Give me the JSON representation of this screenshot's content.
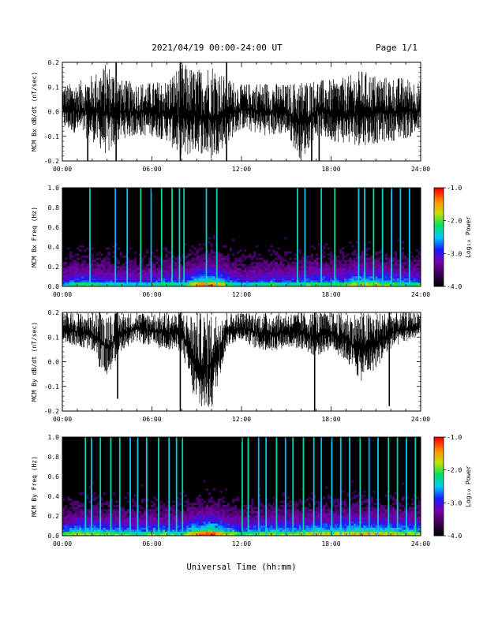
{
  "header": {
    "title": "2021/04/19  00:00-24:00 UT",
    "page": "Page 1/1"
  },
  "footer": {
    "xlabel": "Universal Time (hh:mm)"
  },
  "colors": {
    "background": "#000000",
    "trace": "#000000",
    "colormap": [
      "#000000",
      "#3a0058",
      "#7a00a8",
      "#1a1aff",
      "#00c8ff",
      "#00e060",
      "#c8e000",
      "#ff8c00",
      "#ff0000"
    ]
  },
  "chart_data": [
    {
      "type": "line",
      "panel": "mcm-bx-dbdt",
      "ylabel": "MCM Bx dB/dt (nT/sec)",
      "x_range_hours": [
        0,
        24
      ],
      "ylim": [
        -0.2,
        0.2
      ],
      "x_ticks": [
        "00:00",
        "06:00",
        "12:00",
        "18:00",
        "24:00"
      ],
      "y_ticks": [
        "-0.2",
        "-0.1",
        "0.0",
        "0.1",
        "0.2"
      ],
      "series": [
        {
          "x_hours": [
            0,
            1,
            2,
            3,
            4,
            5,
            6,
            7,
            8,
            9,
            10,
            11,
            12,
            13,
            14,
            15,
            16,
            17,
            18,
            19,
            20,
            21,
            22,
            23,
            24
          ],
          "envelope_max": [
            0.11,
            0.12,
            0.15,
            0.2,
            0.13,
            0.12,
            0.12,
            0.13,
            0.2,
            0.17,
            0.2,
            0.14,
            0.11,
            0.12,
            0.12,
            0.11,
            0.13,
            0.13,
            0.13,
            0.14,
            0.17,
            0.15,
            0.14,
            0.14,
            0.12
          ],
          "envelope_min": [
            -0.07,
            -0.09,
            -0.12,
            -0.18,
            -0.11,
            -0.1,
            -0.1,
            -0.12,
            -0.2,
            -0.16,
            -0.2,
            -0.13,
            -0.07,
            -0.09,
            -0.1,
            -0.09,
            -0.2,
            -0.1,
            -0.12,
            -0.13,
            -0.14,
            -0.13,
            -0.12,
            -0.11,
            -0.09
          ]
        }
      ],
      "spikes": [
        {
          "x_hours": 1.7,
          "y_min": -0.2,
          "y_max": 0.1
        },
        {
          "x_hours": 3.6,
          "y_min": -0.2,
          "y_max": 0.2
        },
        {
          "x_hours": 7.9,
          "y_min": -0.2,
          "y_max": 0.2
        },
        {
          "x_hours": 11.0,
          "y_min": -0.2,
          "y_max": 0.2
        },
        {
          "x_hours": 16.7,
          "y_min": -0.2,
          "y_max": 0.1
        },
        {
          "x_hours": 17.2,
          "y_min": -0.2,
          "y_max": 0.0
        }
      ]
    },
    {
      "type": "heatmap",
      "panel": "mcm-bx-spectrogram",
      "ylabel": "MCM Bx Freq (Hz)",
      "x_range_hours": [
        0,
        24
      ],
      "ylim": [
        0.0,
        1.0
      ],
      "x_ticks": [
        "00:00",
        "06:00",
        "12:00",
        "18:00",
        "24:00"
      ],
      "y_ticks": [
        "0.0",
        "0.2",
        "0.4",
        "0.6",
        "0.8",
        "1.0"
      ],
      "colorbar": {
        "label": "Log₁₀ Power",
        "range": [
          -4.0,
          -1.0
        ],
        "ticks": [
          "-1.0",
          "-2.0",
          "-3.0",
          "-4.0"
        ]
      },
      "activity_by_hour": [
        0.45,
        0.55,
        0.55,
        0.5,
        0.5,
        0.45,
        0.5,
        0.55,
        0.5,
        0.75,
        0.8,
        0.6,
        0.45,
        0.5,
        0.55,
        0.5,
        0.55,
        0.6,
        0.55,
        0.6,
        0.7,
        0.65,
        0.6,
        0.55
      ],
      "vertical_lines_hours": [
        1.8,
        3.5,
        4.3,
        5.2,
        5.9,
        6.6,
        7.3,
        7.8,
        8.1,
        9.6,
        10.3,
        15.7,
        16.2,
        17.3,
        18.2,
        19.8,
        20.2,
        20.8,
        21.4,
        22.0,
        22.6,
        23.2
      ]
    },
    {
      "type": "line",
      "panel": "mcm-by-dbdt",
      "ylabel": "MCM By dB/dt (nT/sec)",
      "x_range_hours": [
        0,
        24
      ],
      "ylim": [
        -0.2,
        0.2
      ],
      "x_ticks": [
        "00:00",
        "06:00",
        "12:00",
        "18:00",
        "24:00"
      ],
      "y_ticks": [
        "-0.2",
        "-0.1",
        "0.0",
        "0.1",
        "0.2"
      ],
      "series": [
        {
          "x_hours": [
            0,
            1,
            2,
            3,
            4,
            5,
            6,
            7,
            8,
            9,
            10,
            11,
            12,
            13,
            14,
            15,
            16,
            17,
            18,
            19,
            20,
            21,
            22,
            23,
            24
          ],
          "envelope_max": [
            0.2,
            0.2,
            0.2,
            0.2,
            0.2,
            0.2,
            0.2,
            0.2,
            0.2,
            0.2,
            0.2,
            0.2,
            0.2,
            0.2,
            0.2,
            0.2,
            0.2,
            0.2,
            0.2,
            0.2,
            0.2,
            0.2,
            0.2,
            0.2,
            0.2
          ],
          "envelope_min": [
            0.08,
            0.06,
            0.04,
            -0.06,
            0.05,
            0.08,
            0.06,
            0.05,
            0.04,
            -0.2,
            -0.2,
            0.06,
            0.09,
            0.05,
            0.04,
            0.06,
            0.05,
            0.02,
            0.05,
            0.0,
            -0.08,
            -0.03,
            0.05,
            0.08,
            0.1
          ]
        }
      ],
      "spikes": [
        {
          "x_hours": 2.5,
          "y_min": -0.02,
          "y_max": 0.2
        },
        {
          "x_hours": 3.7,
          "y_min": -0.15,
          "y_max": 0.2
        },
        {
          "x_hours": 7.9,
          "y_min": -0.2,
          "y_max": 0.2
        },
        {
          "x_hours": 16.9,
          "y_min": -0.2,
          "y_max": 0.2
        },
        {
          "x_hours": 21.9,
          "y_min": -0.18,
          "y_max": 0.2
        }
      ]
    },
    {
      "type": "heatmap",
      "panel": "mcm-by-spectrogram",
      "ylabel": "MCM By Freq (Hz)",
      "x_range_hours": [
        0,
        24
      ],
      "ylim": [
        0.0,
        1.0
      ],
      "x_ticks": [
        "00:00",
        "06:00",
        "12:00",
        "18:00",
        "24:00"
      ],
      "y_ticks": [
        "0.0",
        "0.2",
        "0.4",
        "0.6",
        "0.8",
        "1.0"
      ],
      "colorbar": {
        "label": "Log₁₀ Power",
        "range": [
          -4.0,
          -1.0
        ],
        "ticks": [
          "-1.0",
          "-2.0",
          "-3.0",
          "-4.0"
        ]
      },
      "activity_by_hour": [
        0.55,
        0.65,
        0.65,
        0.6,
        0.6,
        0.55,
        0.6,
        0.6,
        0.55,
        0.8,
        0.85,
        0.65,
        0.55,
        0.6,
        0.65,
        0.6,
        0.65,
        0.7,
        0.65,
        0.7,
        0.75,
        0.7,
        0.7,
        0.65
      ],
      "vertical_lines_hours": [
        1.5,
        1.9,
        2.5,
        3.2,
        3.8,
        4.5,
        5.0,
        5.6,
        6.4,
        7.1,
        7.6,
        8.0,
        12.0,
        12.4,
        13.1,
        13.6,
        14.3,
        14.9,
        15.4,
        16.1,
        16.8,
        17.3,
        18.0,
        18.6,
        19.2,
        19.9,
        20.5,
        21.1,
        21.8,
        22.4,
        23.0,
        23.6
      ]
    }
  ]
}
